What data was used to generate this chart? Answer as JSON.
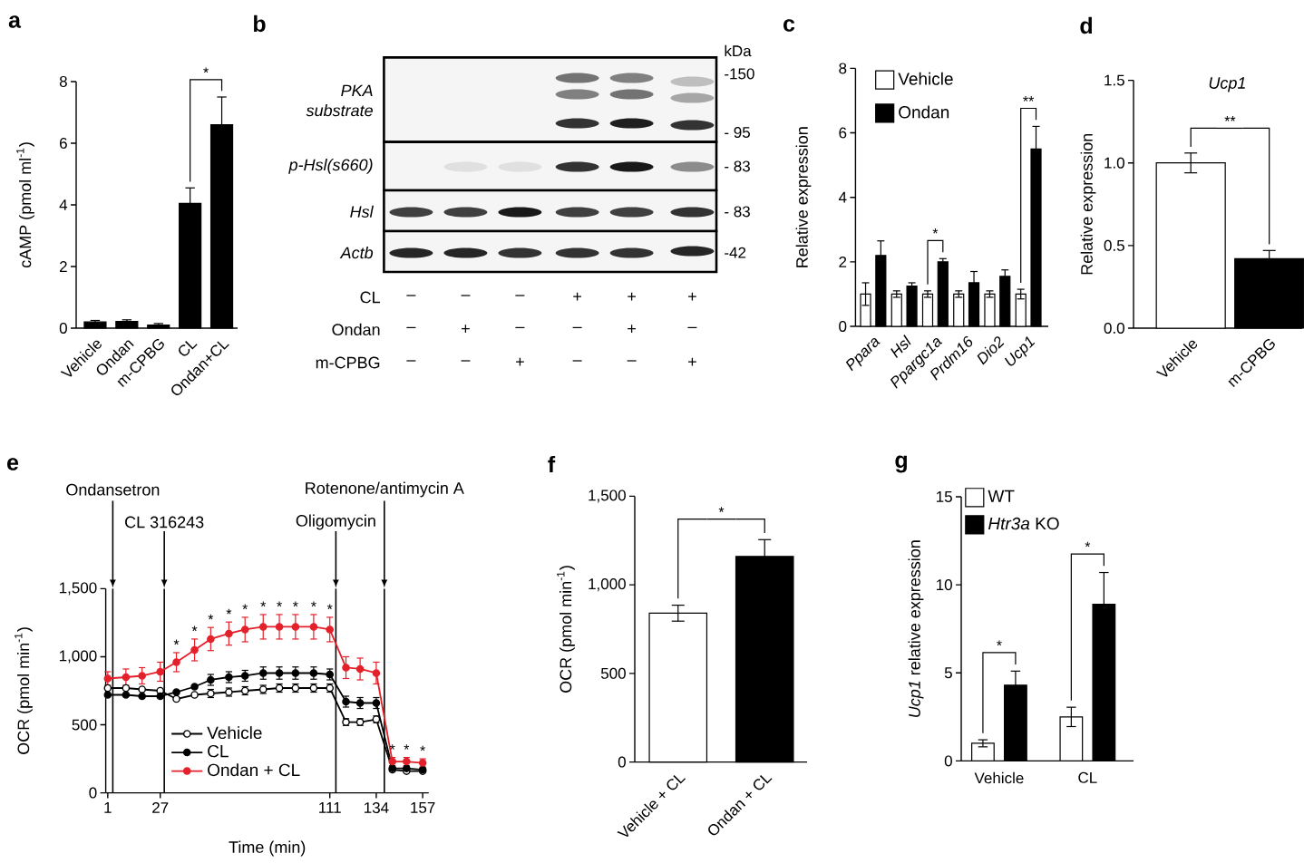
{
  "chart_data": [
    {
      "type": "bar",
      "title": "a",
      "ylabel": "cAMP (pmol ml$^{-1}$)",
      "categories": [
        "Vehicle",
        "Ondan",
        "m-CPBG",
        "CL",
        "Ondan+CL"
      ],
      "values": [
        0.2,
        0.22,
        0.1,
        4.05,
        6.6
      ],
      "errors": [
        0.05,
        0.05,
        0.05,
        0.5,
        0.9
      ],
      "color": "#000000",
      "ylim": [
        0,
        8
      ],
      "yticks": [
        0,
        2,
        4,
        6,
        8
      ],
      "annotations": [
        "*"
      ]
    },
    {
      "type": "other",
      "title": "b",
      "annotations": [
        "kDa",
        "-150",
        "- 95",
        "- 83",
        "- 83",
        "-42",
        "PKA substrate",
        "p-Hsl(s660)",
        "Hsl",
        "Actb"
      ],
      "y_categories": [
        "CL",
        "Ondan",
        "m-CPBG"
      ],
      "cell_labels": [
        [
          "–",
          "–",
          "–",
          "+",
          "+",
          "+"
        ],
        [
          "–",
          "+",
          "–",
          "–",
          "+",
          "–"
        ],
        [
          "–",
          "–",
          "+",
          "–",
          "–",
          "+"
        ]
      ]
    },
    {
      "type": "bar",
      "title": "c",
      "ylabel": "Relative expression",
      "categories": [
        "Ppara",
        "Hsl",
        "Ppargc1a",
        "Prdm16",
        "Dio2",
        "Ucp1"
      ],
      "series": [
        {
          "name": "Vehicle",
          "color": "#ffffff",
          "values": [
            1,
            1,
            1,
            1,
            1,
            1
          ],
          "errors": [
            0.35,
            0.1,
            0.1,
            0.1,
            0.1,
            0.15
          ]
        },
        {
          "name": "Ondan",
          "color": "#000000",
          "values": [
            2.2,
            1.25,
            2.0,
            1.35,
            1.55,
            5.5
          ],
          "errors": [
            0.45,
            0.1,
            0.1,
            0.35,
            0.2,
            0.7
          ]
        }
      ],
      "ylim": [
        0,
        8
      ],
      "yticks": [
        0,
        2,
        4,
        6,
        8
      ],
      "legend": "top left",
      "annotations": [
        "*",
        "**"
      ]
    },
    {
      "type": "bar",
      "title": "d",
      "subtitle": "Ucp1",
      "ylabel": "Relative expression",
      "categories": [
        "Vehicle",
        "m-CPBG"
      ],
      "values": [
        1.0,
        0.42
      ],
      "errors": [
        0.06,
        0.05
      ],
      "colors": [
        "#ffffff",
        "#000000"
      ],
      "ylim": [
        0,
        1.5
      ],
      "yticks": [
        {
          "value": 0,
          "label": "0.0"
        },
        0.5,
        {
          "value": 1,
          "label": "1.0"
        },
        1.5
      ],
      "annotations": [
        "**"
      ]
    },
    {
      "type": "line",
      "title": "e",
      "xlabel": "Time (min)",
      "ylabel": "OCR (pmol min$^{-1}$)",
      "x": [
        1,
        10,
        18,
        27,
        35,
        44,
        52,
        61,
        69,
        78,
        86,
        94,
        103,
        111,
        119,
        126,
        134,
        142,
        149,
        157
      ],
      "series": [
        {
          "name": "Vehicle",
          "color": "#000000",
          "values": [
            770,
            770,
            760,
            750,
            690,
            720,
            730,
            740,
            750,
            760,
            770,
            770,
            770,
            770,
            520,
            520,
            540,
            170,
            160,
            160
          ],
          "errors": [
            null,
            null,
            null,
            null,
            null,
            null,
            30,
            30,
            30,
            30,
            30,
            30,
            30,
            30,
            25,
            25,
            25,
            null,
            null,
            null
          ]
        },
        {
          "name": "CL",
          "color": "#000000",
          "values": [
            720,
            720,
            710,
            710,
            740,
            780,
            830,
            850,
            860,
            880,
            880,
            880,
            880,
            870,
            670,
            660,
            660,
            180,
            180,
            170
          ],
          "errors": [
            null,
            null,
            null,
            null,
            null,
            null,
            40,
            40,
            40,
            45,
            45,
            45,
            45,
            40,
            40,
            40,
            40,
            null,
            null,
            null
          ]
        },
        {
          "name": "Ondan + CL",
          "color": "#e4202a",
          "values": [
            840,
            850,
            860,
            890,
            960,
            1050,
            1130,
            1170,
            1200,
            1220,
            1220,
            1220,
            1220,
            1200,
            920,
            910,
            880,
            230,
            230,
            220
          ],
          "errors": [
            50,
            60,
            60,
            70,
            70,
            80,
            85,
            85,
            90,
            90,
            90,
            90,
            90,
            90,
            80,
            80,
            80,
            30,
            30,
            30
          ]
        }
      ],
      "xlim": [
        0,
        160
      ],
      "xticks": [
        1,
        27,
        111,
        134,
        157
      ],
      "ylim": [
        0,
        1500
      ],
      "yticks": [
        0,
        500,
        {
          "value": 1000,
          "label": "1,000"
        },
        {
          "value": 1500,
          "label": "1,500"
        }
      ],
      "marker": "circle",
      "legend": "bottom",
      "ref_lines": [
        {
          "axis": "x",
          "value": 3.5,
          "label": "Ondansetron"
        },
        {
          "axis": "x",
          "value": 29,
          "label": "CL 316243"
        },
        {
          "axis": "x",
          "value": 114,
          "label": "Oligomycin"
        },
        {
          "axis": "x",
          "value": 138,
          "label": "Rotenone/antimycin A"
        }
      ],
      "annotations": [
        "*",
        "*",
        "*",
        "*",
        "*",
        "*",
        "*",
        "*",
        "*",
        "*",
        "*",
        "*",
        "*"
      ]
    },
    {
      "type": "bar",
      "title": "f",
      "ylabel": "OCR (pmol min$^{-1}$)",
      "categories": [
        "Vehicle + CL",
        "Ondan + CL"
      ],
      "values": [
        840,
        1160
      ],
      "errors": [
        45,
        95
      ],
      "colors": [
        "#ffffff",
        "#000000"
      ],
      "ylim": [
        0,
        1500
      ],
      "yticks": [
        0,
        500,
        {
          "value": 1000,
          "label": "1,000"
        },
        {
          "value": 1500,
          "label": "1,500"
        }
      ],
      "annotations": [
        "*"
      ]
    },
    {
      "type": "bar",
      "title": "g",
      "ylabel": "*Ucp1* relative expression",
      "categories": [
        "Vehicle",
        "CL"
      ],
      "series": [
        {
          "name": "WT",
          "color": "#ffffff",
          "values": [
            1.0,
            2.5
          ],
          "errors": [
            0.2,
            0.55
          ]
        },
        {
          "name": "*Htr3a* KO",
          "color": "#000000",
          "values": [
            4.3,
            8.9
          ],
          "errors": [
            0.8,
            1.8
          ]
        }
      ],
      "ylim": [
        0,
        15
      ],
      "yticks": [
        0,
        5,
        10,
        15
      ],
      "legend": "top left",
      "annotations": [
        "*",
        "*"
      ]
    }
  ]
}
